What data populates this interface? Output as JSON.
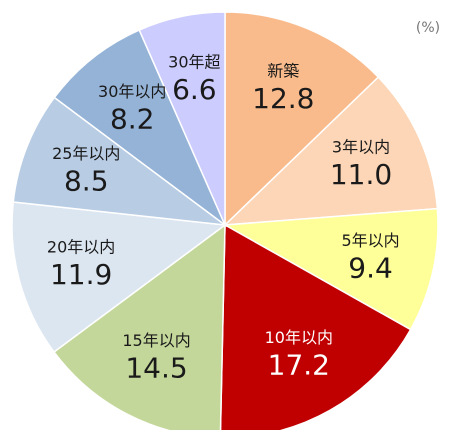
{
  "chart_data": {
    "type": "pie",
    "unit": "(%)",
    "categories": [
      "新築",
      "3年以内",
      "5年以内",
      "10年以内",
      "15年以内",
      "20年以内",
      "25年以内",
      "30年以内",
      "30年超"
    ],
    "values": [
      12.8,
      11.0,
      9.4,
      17.2,
      14.5,
      11.9,
      8.5,
      8.2,
      6.6
    ],
    "value_labels": [
      "12.8",
      "11.0",
      "9.4",
      "17.2",
      "14.5",
      "11.9",
      "8.5",
      "8.2",
      "6.6"
    ],
    "colors": [
      "#f9bb8c",
      "#fcd6b6",
      "#ffff99",
      "#c00000",
      "#c4d79b",
      "#dce6f1",
      "#b8cce4",
      "#95b3d7",
      "#ccccff"
    ],
    "label_colors": [
      "#1a1a1a",
      "#1a1a1a",
      "#1a1a1a",
      "#ffffff",
      "#1a1a1a",
      "#1a1a1a",
      "#1a1a1a",
      "#1a1a1a",
      "#1a1a1a"
    ]
  }
}
